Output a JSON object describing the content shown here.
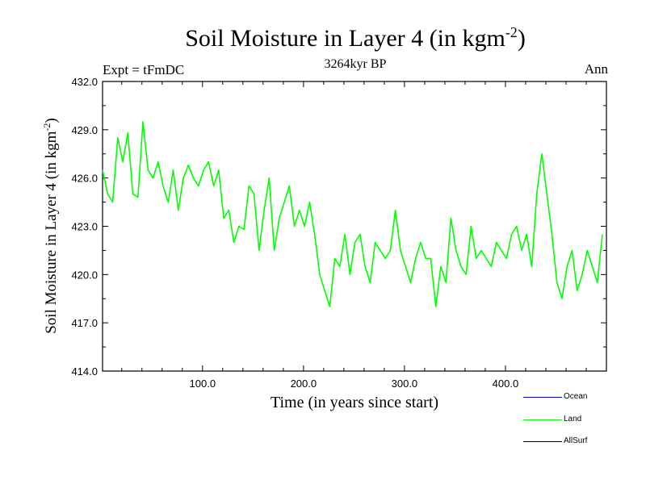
{
  "title": {
    "main": "Soil Moisture in Layer 4 (in kgm",
    "sup": "-2",
    "close": ")"
  },
  "subtitle": "3264kyr BP",
  "expt_label": "Expt = tFmDC",
  "season_label": "Ann",
  "legend": [
    {
      "label": "Ocean",
      "color": "#0000ff"
    },
    {
      "label": "Land",
      "color": "#00ff00"
    },
    {
      "label": "AllSurf",
      "color": "#000000"
    }
  ],
  "chart_data": {
    "type": "line",
    "title": "Soil Moisture in Layer 4 (in kgm-2)",
    "xlabel": "Time (in years since start)",
    "ylabel": "Soil Moisture in Layer 4 (in kgm-2)",
    "xlim": [
      1,
      500
    ],
    "ylim": [
      414.0,
      432.0
    ],
    "xticks": [
      100,
      200,
      300,
      400
    ],
    "xtick_labels": [
      "100.0",
      "200.0",
      "300.0",
      "400.0"
    ],
    "yticks": [
      414,
      417,
      420,
      423,
      426,
      429,
      432
    ],
    "ytick_labels": [
      "414.0",
      "417.0",
      "420.0",
      "423.0",
      "426.0",
      "429.0",
      "432.0"
    ],
    "series": [
      {
        "name": "Land",
        "color": "#00ff00",
        "x_start": 1,
        "x_step": 5,
        "values": [
          426.5,
          425.0,
          424.5,
          428.5,
          427.0,
          428.8,
          425.0,
          424.8,
          429.5,
          426.5,
          426.0,
          427.0,
          425.5,
          424.5,
          426.5,
          424.0,
          426.0,
          426.8,
          426.0,
          425.5,
          426.5,
          427.0,
          425.5,
          426.5,
          423.5,
          424.0,
          422.0,
          423.0,
          422.8,
          425.5,
          425.0,
          421.5,
          424.0,
          426.0,
          421.5,
          423.5,
          424.5,
          425.5,
          423.0,
          424.0,
          423.0,
          424.5,
          422.5,
          420.0,
          419.0,
          418.0,
          421.0,
          420.5,
          422.5,
          420.0,
          422.0,
          422.5,
          420.5,
          419.5,
          422.0,
          421.5,
          421.0,
          421.5,
          424.0,
          421.5,
          420.5,
          419.5,
          421.0,
          422.0,
          421.0,
          421.0,
          418.0,
          420.5,
          419.5,
          423.5,
          421.5,
          420.5,
          420.0,
          423.0,
          421.0,
          421.5,
          421.0,
          420.5,
          422.0,
          421.5,
          421.0,
          422.5,
          423.0,
          421.5,
          422.5,
          420.5,
          425.0,
          427.5,
          425.0,
          422.5,
          419.5,
          418.5,
          420.5,
          421.5,
          419.0,
          420.0,
          421.5,
          420.5,
          419.5,
          422.5
        ]
      }
    ],
    "legend_entries": [
      "Ocean",
      "Land",
      "AllSurf"
    ]
  }
}
